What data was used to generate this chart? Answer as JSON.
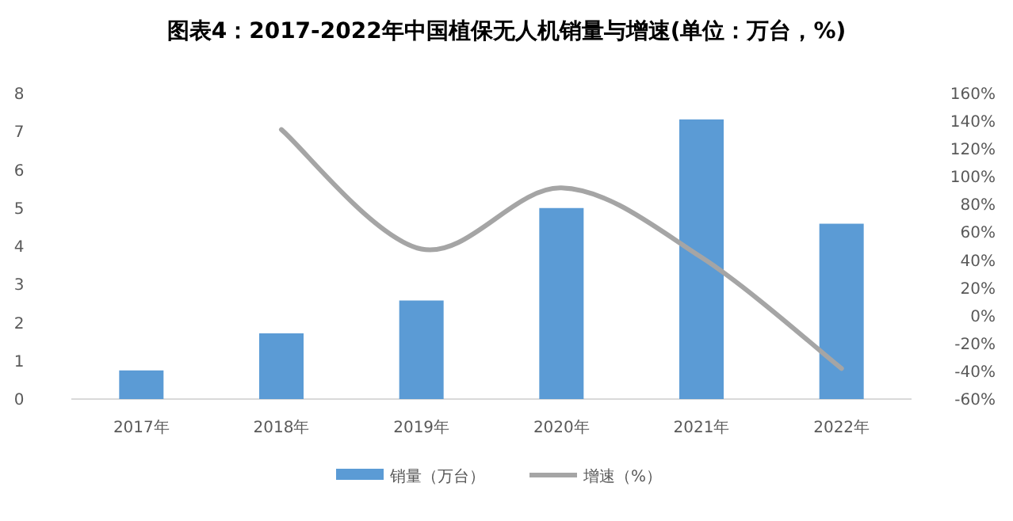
{
  "chart_data": {
    "type": "bar",
    "title": "**图表4：2017-2022年中国植保无人机销量与增速(单位：万台，%)**",
    "categories": [
      "2017年",
      "2018年",
      "2019年",
      "2020年",
      "2021年",
      "2022年"
    ],
    "series": [
      {
        "name": "销量（万台）",
        "color": "#5b9bd5",
        "values": [
          0.75,
          1.72,
          2.58,
          5.0,
          7.32,
          4.59
        ]
      },
      {
        "name": "增速（%）",
        "type": "line",
        "axis": "y2",
        "color": "#a5a5a5",
        "values": [
          null,
          134,
          48,
          92,
          42,
          -38
        ]
      }
    ],
    "ylim": [
      0,
      8
    ],
    "yticks": [
      0,
      1,
      2,
      3,
      4,
      5,
      6,
      7,
      8
    ],
    "y2lim": [
      -60,
      160
    ],
    "y2ticks": [
      {
        "value": -60,
        "label": "-60%"
      },
      {
        "value": -40,
        "label": "-40%"
      },
      {
        "value": -20,
        "label": "-20%"
      },
      {
        "value": 0,
        "label": "0%"
      },
      {
        "value": 20,
        "label": "20%"
      },
      {
        "value": 40,
        "label": "40%"
      },
      {
        "value": 60,
        "label": "60%"
      },
      {
        "value": 80,
        "label": "80%"
      },
      {
        "value": 100,
        "label": "100%"
      },
      {
        "value": 120,
        "label": "120%"
      },
      {
        "value": 140,
        "label": "140%"
      },
      {
        "value": 160,
        "label": "160%"
      }
    ],
    "grid": false,
    "legend": "bottom",
    "marker": "none",
    "line_style": "solid"
  }
}
